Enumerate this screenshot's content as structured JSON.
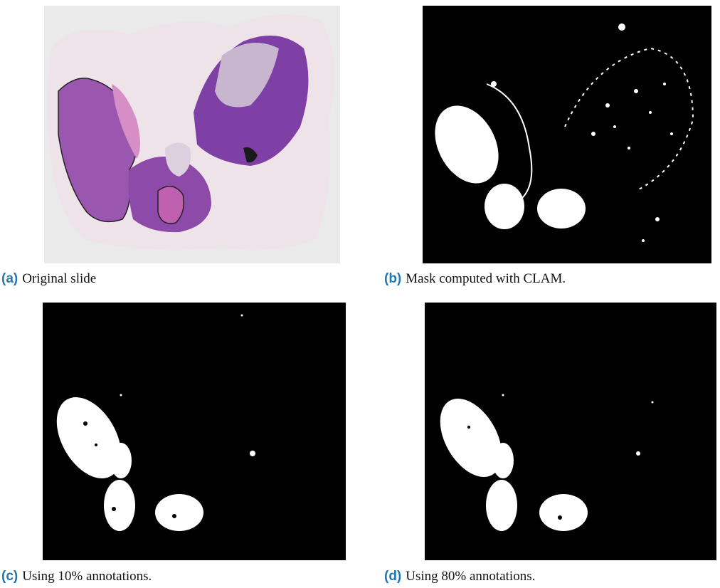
{
  "figures": [
    {
      "label": "(a)",
      "caption": "Original slide"
    },
    {
      "label": "(b)",
      "caption": "Mask computed with CLAM."
    },
    {
      "label": "(c)",
      "caption": "Using 10% annotations."
    },
    {
      "label": "(d)",
      "caption": "Using 80% annotations."
    }
  ]
}
